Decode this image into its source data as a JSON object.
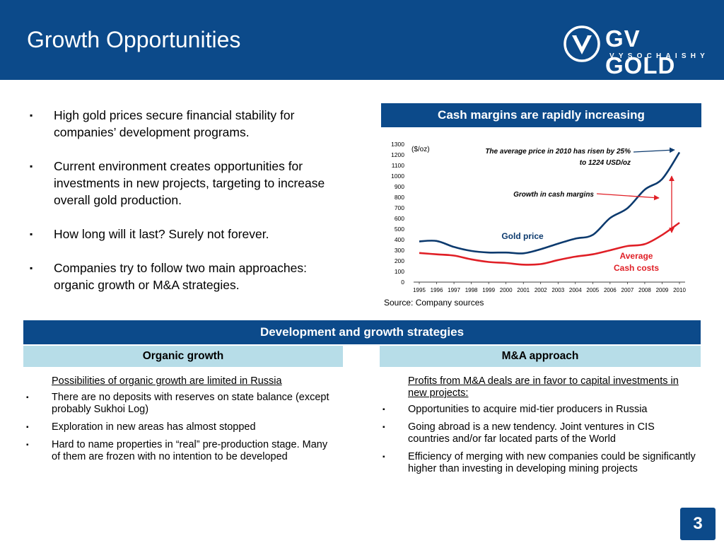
{
  "header": {
    "title": "Growth Opportunities"
  },
  "logo": {
    "name": "GV GOLD",
    "sub": "VYSOCHAISHY"
  },
  "bullets": [
    "High gold prices secure financial stability for companies’ development programs.",
    "Current environment creates opportunities for investments in new projects, targeting to increase overall gold  production.",
    "How long will it last? Surely not forever.",
    "Companies try to follow two main approaches: organic growth or M&A strategies."
  ],
  "bullet_marker": "▪",
  "chart_panel": {
    "title": "Cash margins are rapidly increasing",
    "source": "Source: Company sources"
  },
  "chart_data": {
    "type": "line",
    "x": [
      "1995",
      "1996",
      "1997",
      "1998",
      "1999",
      "2000",
      "2001",
      "2002",
      "2003",
      "2004",
      "2005",
      "2006",
      "2007",
      "2008",
      "2009",
      "2010"
    ],
    "series": [
      {
        "name": "Gold price",
        "values": [
          384,
          388,
          331,
          294,
          279,
          279,
          271,
          310,
          363,
          410,
          445,
          604,
          697,
          872,
          972,
          1224
        ],
        "color": "#0c3a6e"
      },
      {
        "name": "Average Cash costs",
        "values": [
          275,
          262,
          250,
          215,
          190,
          180,
          165,
          170,
          208,
          240,
          262,
          300,
          340,
          358,
          445,
          560
        ],
        "color": "#e01f26"
      }
    ],
    "ylim": [
      0,
      1300
    ],
    "yticks": [
      0,
      100,
      200,
      300,
      400,
      500,
      600,
      700,
      800,
      900,
      1000,
      1100,
      1200,
      1300
    ],
    "ylabel": "($/oz)",
    "annotations": {
      "price_note_line1": "The average price in 2010 has risen by 25%",
      "price_note_line2": "to 1224 USD/oz",
      "margin_note": "Growth in cash margins",
      "gold_label": "Gold price",
      "cost_label_line1": "Average",
      "cost_label_line2": "Cash costs"
    },
    "annotation_colors": {
      "price_note": "#0c3a6e",
      "margin_note": "#e01f26"
    }
  },
  "strategies": {
    "title": "Development and growth strategies",
    "organic": {
      "heading": "Organic growth",
      "intro": "Possibilities of organic growth are limited in Russia",
      "items": [
        "There are no deposits with reserves on state balance (except probably Sukhoi Log)",
        "Exploration in new areas has almost stopped",
        "Hard to name properties in “real” pre-production stage. Many of them are frozen with no intention to be developed"
      ]
    },
    "ma": {
      "heading": "M&A approach",
      "intro": "Profits from M&A deals are in favor to capital investments in new projects:",
      "items": [
        "Opportunities to acquire mid-tier producers in Russia",
        "Going abroad is a new tendency. Joint ventures in CIS countries and/or far located parts of the World",
        "Efficiency of merging with new companies could be significantly higher than investing in developing mining projects"
      ]
    }
  },
  "page_number": "3",
  "colors": {
    "navy": "#0c4a8a",
    "light_blue": "#b7dde8",
    "red": "#e01f26"
  }
}
